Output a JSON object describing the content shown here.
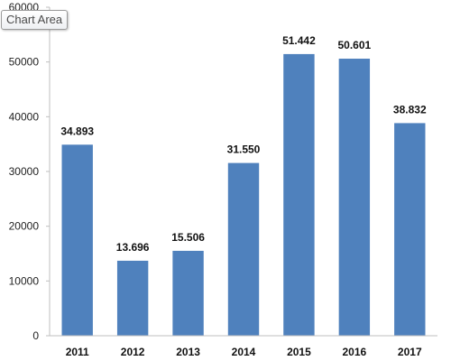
{
  "tooltip": {
    "label": "Chart Area"
  },
  "colors": {
    "bar": "#4f81bd",
    "axis": "#bfbfbf"
  },
  "chart_data": {
    "type": "bar",
    "categories": [
      "2011",
      "2012",
      "2013",
      "2014",
      "2015",
      "2016",
      "2017"
    ],
    "values": [
      34893,
      13696,
      15506,
      31550,
      51442,
      50601,
      38832
    ],
    "data_labels": [
      "34.893",
      "13.696",
      "15.506",
      "31.550",
      "51.442",
      "50.601",
      "38.832"
    ],
    "title": "",
    "xlabel": "",
    "ylabel": "",
    "ylim": [
      0,
      60000
    ],
    "yticks": [
      "0",
      "10000",
      "20000",
      "30000",
      "40000",
      "50000",
      "60000"
    ],
    "grid": false,
    "legend": "none"
  }
}
